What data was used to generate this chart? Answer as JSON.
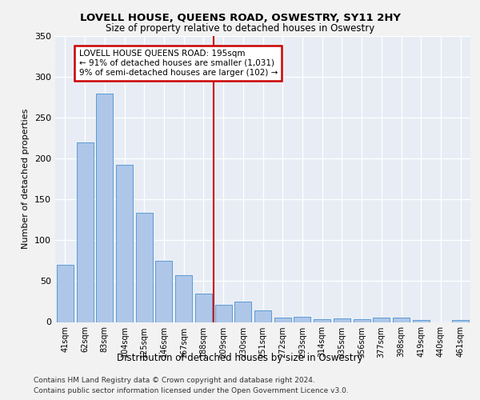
{
  "title": "LOVELL HOUSE, QUEENS ROAD, OSWESTRY, SY11 2HY",
  "subtitle": "Size of property relative to detached houses in Oswestry",
  "xlabel": "Distribution of detached houses by size in Oswestry",
  "ylabel": "Number of detached properties",
  "bar_color": "#aec6e8",
  "bar_edge_color": "#5b9bd5",
  "background_color": "#e8edf5",
  "grid_color": "#ffffff",
  "categories": [
    "41sqm",
    "62sqm",
    "83sqm",
    "104sqm",
    "125sqm",
    "146sqm",
    "167sqm",
    "188sqm",
    "209sqm",
    "230sqm",
    "251sqm",
    "272sqm",
    "293sqm",
    "314sqm",
    "335sqm",
    "356sqm",
    "377sqm",
    "398sqm",
    "419sqm",
    "440sqm",
    "461sqm"
  ],
  "values": [
    70,
    220,
    280,
    192,
    134,
    75,
    57,
    35,
    21,
    25,
    14,
    5,
    6,
    3,
    4,
    3,
    5,
    5,
    2,
    0,
    2
  ],
  "ylim": [
    0,
    350
  ],
  "yticks": [
    0,
    50,
    100,
    150,
    200,
    250,
    300,
    350
  ],
  "property_line_x": 7.5,
  "annotation_text": "LOVELL HOUSE QUEENS ROAD: 195sqm\n← 91% of detached houses are smaller (1,031)\n9% of semi-detached houses are larger (102) →",
  "annotation_box_color": "#ffffff",
  "annotation_edge_color": "#cc0000",
  "property_line_color": "#cc0000",
  "footer_line1": "Contains HM Land Registry data © Crown copyright and database right 2024.",
  "footer_line2": "Contains public sector information licensed under the Open Government Licence v3.0."
}
